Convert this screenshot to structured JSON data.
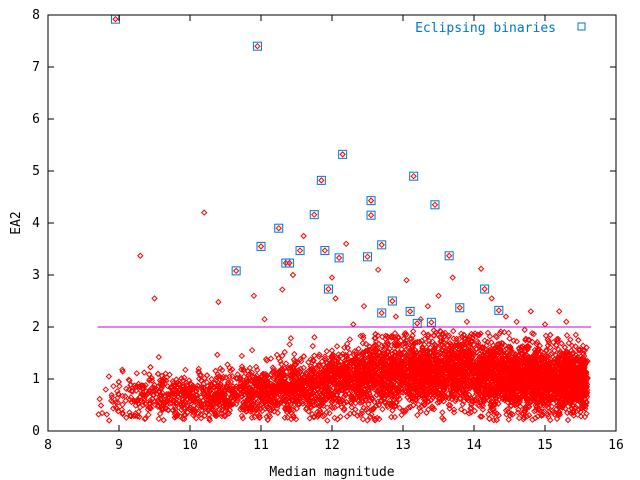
{
  "chart_data": {
    "type": "scatter",
    "title": "",
    "xlabel": "Median magnitude",
    "ylabel": "EA2",
    "xlim": [
      8,
      16
    ],
    "ylim": [
      0,
      8
    ],
    "xticks": [
      "8",
      "9",
      "10",
      "11",
      "12",
      "13",
      "14",
      "15",
      "16"
    ],
    "yticks": [
      "0",
      "1",
      "2",
      "3",
      "4",
      "5",
      "6",
      "7",
      "8"
    ],
    "grid": false,
    "legend": "top-right",
    "colors": {
      "stars": "#ff0000",
      "eclipsing": "#0077cc",
      "threshold": "#cc00cc"
    },
    "threshold": {
      "y": 2.0,
      "x_start": 8.7,
      "x_end": 15.65
    },
    "series": [
      {
        "name": "Eclipsing binaries",
        "marker": "open-square",
        "x": [
          8.95,
          10.95,
          12.15,
          11.85,
          13.15,
          11.75,
          12.55,
          12.55,
          13.45,
          11.25,
          11.0,
          12.7,
          11.55,
          11.9,
          13.65,
          10.65,
          11.35,
          11.4,
          12.1,
          12.5,
          11.95,
          14.15,
          12.85,
          13.8,
          14.35,
          13.1,
          12.7,
          13.2,
          13.4
        ],
        "y": [
          7.92,
          7.4,
          5.32,
          4.82,
          4.9,
          4.16,
          4.43,
          4.15,
          4.35,
          3.9,
          3.55,
          3.58,
          3.47,
          3.47,
          3.37,
          3.08,
          3.23,
          3.23,
          3.33,
          3.35,
          2.73,
          2.73,
          2.5,
          2.37,
          2.32,
          2.3,
          2.27,
          2.07,
          2.09
        ]
      },
      {
        "name": "",
        "marker": "diamond",
        "binned_trend": {
          "x": [
            8.7,
            9.0,
            9.5,
            10.0,
            10.5,
            11.0,
            11.5,
            12.0,
            12.5,
            13.0,
            13.5,
            14.0,
            14.5,
            15.0,
            15.5
          ],
          "median_y": [
            0.6,
            0.65,
            0.68,
            0.66,
            0.7,
            0.76,
            0.84,
            0.93,
            1.04,
            1.12,
            1.16,
            1.13,
            1.06,
            1.0,
            0.96
          ],
          "spread": [
            0.25,
            0.25,
            0.23,
            0.22,
            0.23,
            0.25,
            0.27,
            0.3,
            0.32,
            0.34,
            0.34,
            0.33,
            0.32,
            0.3,
            0.3
          ],
          "n_points": 6000
        },
        "outliers": {
          "x": [
            9.3,
            9.5,
            10.2,
            10.4,
            10.9,
            11.3,
            11.45,
            11.6,
            12.0,
            12.05,
            12.2,
            12.45,
            12.65,
            12.9,
            13.05,
            13.25,
            13.5,
            13.7,
            13.9,
            14.1,
            14.25,
            14.45,
            14.6,
            14.8,
            15.0,
            15.2,
            15.3,
            11.05,
            12.3,
            13.35
          ],
          "y": [
            3.37,
            2.55,
            4.2,
            2.48,
            2.6,
            2.72,
            3.0,
            3.75,
            2.95,
            2.55,
            3.6,
            2.4,
            3.1,
            2.2,
            2.9,
            2.15,
            2.6,
            2.95,
            2.1,
            3.12,
            2.55,
            2.2,
            2.1,
            2.3,
            2.05,
            2.3,
            2.1,
            2.15,
            2.05,
            2.4
          ]
        }
      }
    ]
  }
}
